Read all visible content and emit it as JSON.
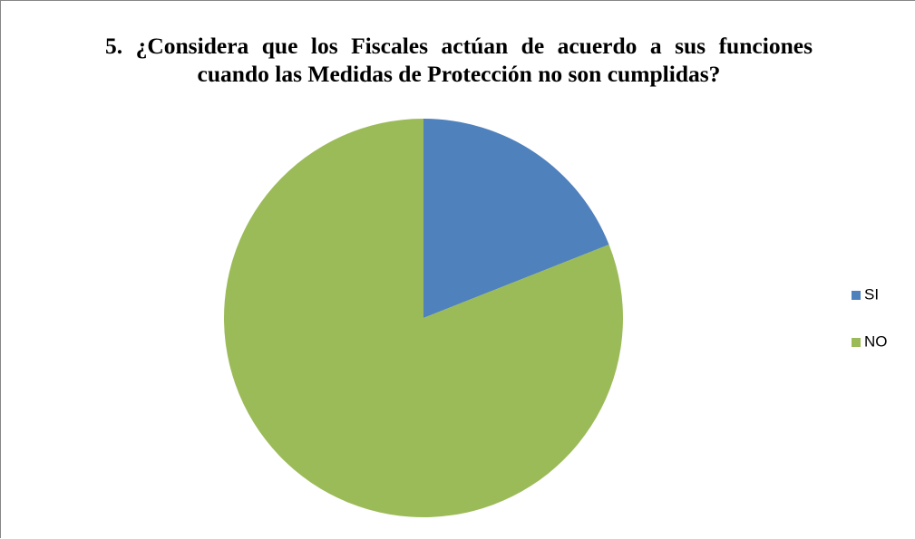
{
  "chart_data": {
    "type": "pie",
    "title": "5. ¿Considera que los Fiscales actúan de acuerdo a sus funciones cuando las Medidas de Protección no son cumplidas?",
    "categories": [
      "SI",
      "NO"
    ],
    "values": [
      19,
      81
    ],
    "colors": [
      "#4f81bd",
      "#9bbb59"
    ],
    "legend": "right"
  }
}
